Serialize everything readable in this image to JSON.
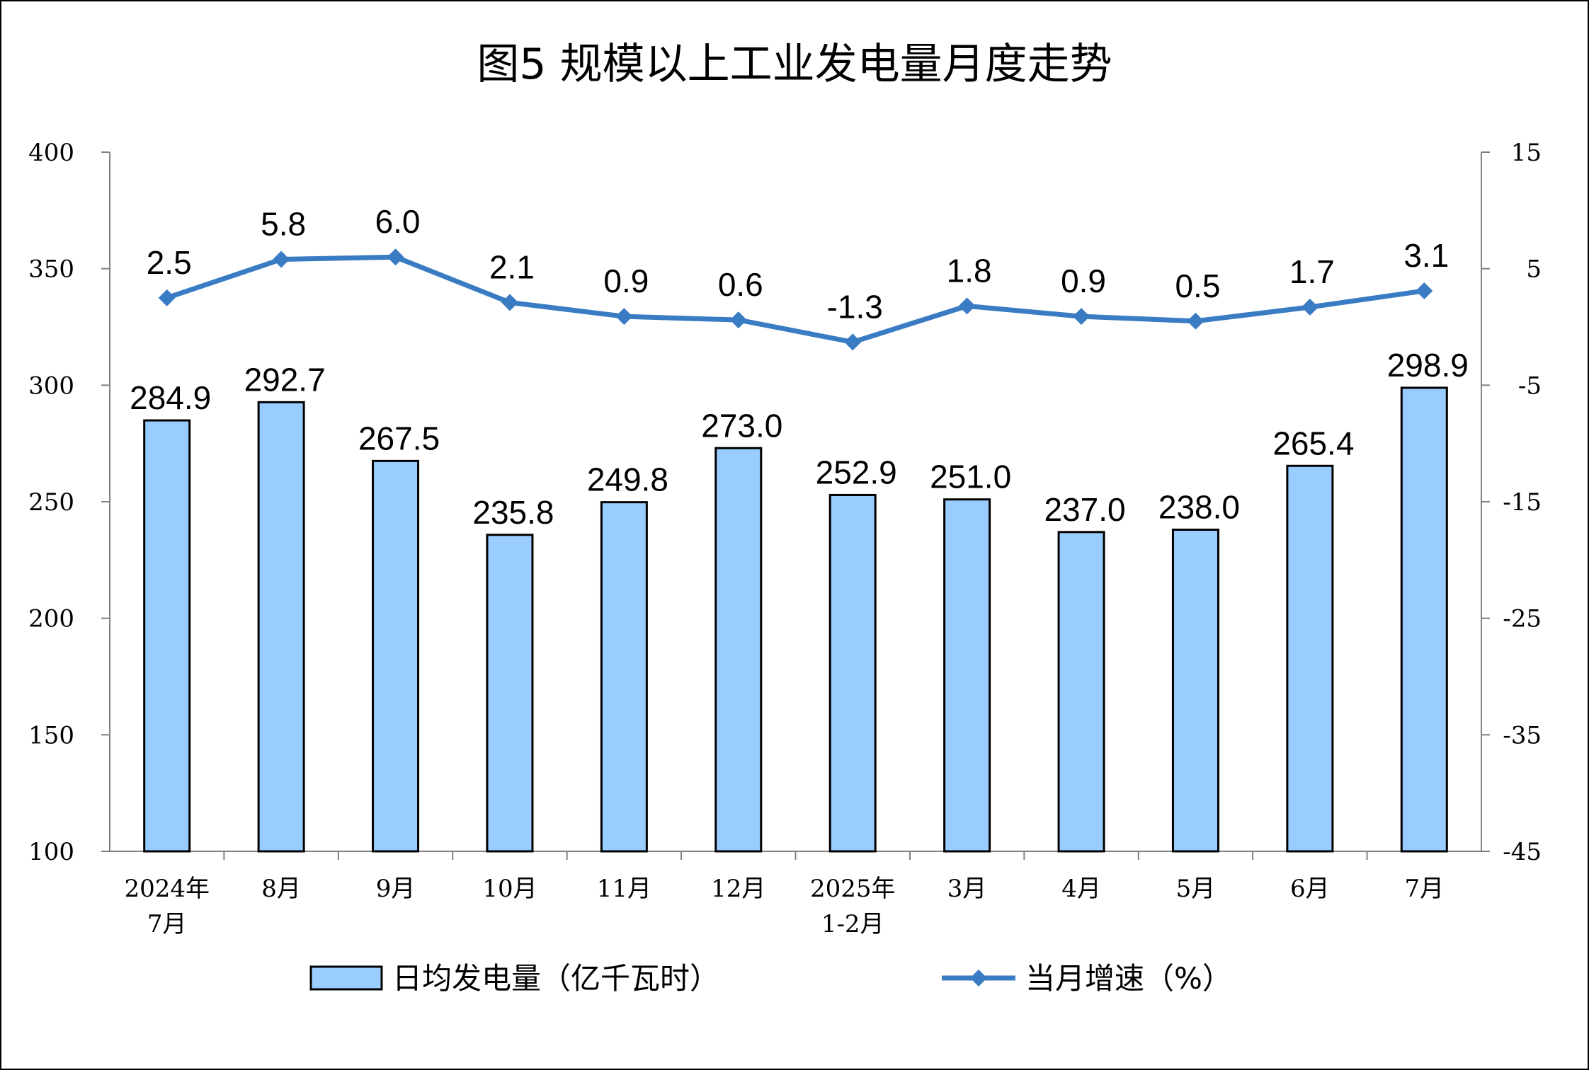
{
  "title": "图5  规模以上工业发电量月度走势",
  "chart_data": {
    "type": "bar+line",
    "categories": [
      [
        "2024年",
        "7月"
      ],
      [
        "8月"
      ],
      [
        "9月"
      ],
      [
        "10月"
      ],
      [
        "11月"
      ],
      [
        "12月"
      ],
      [
        "2025年",
        "1-2月"
      ],
      [
        "3月"
      ],
      [
        "4月"
      ],
      [
        "5月"
      ],
      [
        "6月"
      ],
      [
        "7月"
      ]
    ],
    "series": [
      {
        "name": "日均发电量（亿千瓦时）",
        "type": "bar",
        "axis": "left",
        "color": "#99CCFF",
        "values": [
          284.9,
          292.7,
          267.5,
          235.8,
          249.8,
          273.0,
          252.9,
          251.0,
          237.0,
          238.0,
          265.4,
          298.9
        ],
        "labels": [
          "284.9",
          "292.7",
          "267.5",
          "235.8",
          "249.8",
          "273.0",
          "252.9",
          "251.0",
          "237.0",
          "238.0",
          "265.4",
          "298.9"
        ]
      },
      {
        "name": "当月增速（%）",
        "type": "line",
        "axis": "right",
        "color": "#3A7CC4",
        "marker": "diamond",
        "values": [
          2.5,
          5.8,
          6.0,
          2.1,
          0.9,
          0.6,
          -1.3,
          1.8,
          0.9,
          0.5,
          1.7,
          3.1
        ],
        "labels": [
          "2.5",
          "5.8",
          "6.0",
          "2.1",
          "0.9",
          "0.6",
          "-1.3",
          "1.8",
          "0.9",
          "0.5",
          "1.7",
          "3.1"
        ]
      }
    ],
    "y_left": {
      "min": 100,
      "max": 400,
      "ticks": [
        100,
        150,
        200,
        250,
        300,
        350,
        400
      ]
    },
    "y_right": {
      "min": -45,
      "max": 15,
      "ticks": [
        -45,
        -35,
        -25,
        -15,
        -5,
        5,
        15
      ]
    },
    "grid": false,
    "legend": "bottom"
  }
}
